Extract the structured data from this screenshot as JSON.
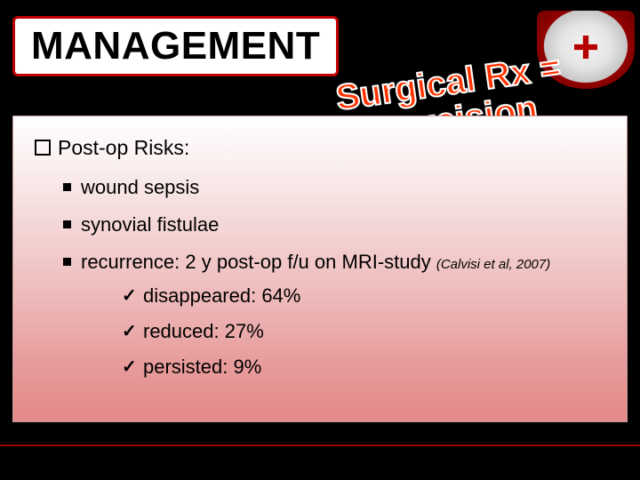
{
  "title": "MANAGEMENT",
  "callout": {
    "line1": "Surgical Rx =",
    "line2": "excision"
  },
  "panel": {
    "heading": "Post-op Risks:",
    "bullets": {
      "b1": "wound sepsis",
      "b2": "synovial fistulae",
      "b3_prefix": "recurrence: 2 y post-op f/u on MRI-study ",
      "b3_citation": "(Calvisi et al, 2007)"
    },
    "checks": {
      "c1": "disappeared:  64%",
      "c2": "reduced:  27%",
      "c3": "persisted: 9%"
    }
  },
  "colors": {
    "background": "#000000",
    "title_border": "#c00000",
    "callout_text": "#ff3300",
    "panel_grad_top": "#ffffff",
    "panel_grad_bottom": "#e48989",
    "footer_line": "#9a0000"
  }
}
